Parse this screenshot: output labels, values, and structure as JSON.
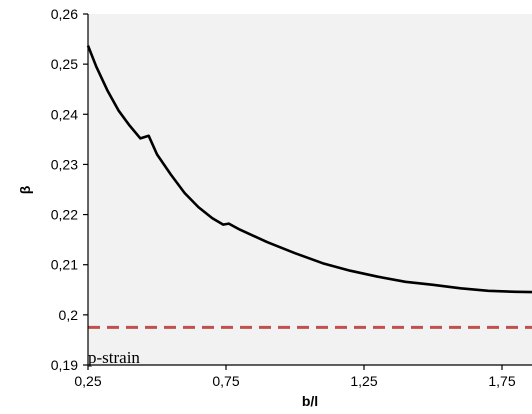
{
  "chart_data": {
    "type": "line",
    "title": "",
    "xlabel": "b/l",
    "ylabel": "β",
    "xlim": [
      0.25,
      2.0
    ],
    "ylim": [
      0.19,
      0.26
    ],
    "x_ticks": [
      0.25,
      0.75,
      1.25,
      1.75
    ],
    "x_tick_labels": [
      "0,25",
      "0,75",
      "1,25",
      "1,75"
    ],
    "y_ticks": [
      0.19,
      0.2,
      0.21,
      0.22,
      0.23,
      0.24,
      0.25,
      0.26
    ],
    "y_tick_labels": [
      "0,19",
      "0,2",
      "0,21",
      "0,22",
      "0,23",
      "0,24",
      "0,25",
      "0,26"
    ],
    "grid": false,
    "plot_background": "#f2f2f2",
    "annotations": [
      {
        "text": "p-strain",
        "x": 0.25,
        "y": 0.19
      }
    ],
    "series": [
      {
        "color": "#000000",
        "style": "solid",
        "x": [
          0.25,
          0.28,
          0.32,
          0.36,
          0.4,
          0.44,
          0.47,
          0.5,
          0.55,
          0.6,
          0.65,
          0.7,
          0.74,
          0.76,
          0.8,
          0.9,
          1.0,
          1.1,
          1.2,
          1.3,
          1.4,
          1.5,
          1.6,
          1.7,
          1.8,
          1.9,
          2.0
        ],
        "y": [
          0.2537,
          0.2495,
          0.2448,
          0.2408,
          0.2378,
          0.2352,
          0.2357,
          0.232,
          0.228,
          0.2243,
          0.2215,
          0.2193,
          0.218,
          0.2182,
          0.217,
          0.2145,
          0.2123,
          0.2103,
          0.2088,
          0.2076,
          0.2066,
          0.206,
          0.2053,
          0.2048,
          0.2046,
          0.2045,
          0.2045
        ]
      },
      {
        "color": "#c0504d",
        "style": "dashed",
        "x": [
          0.25,
          2.0
        ],
        "y": [
          0.1975,
          0.1975
        ]
      }
    ]
  }
}
